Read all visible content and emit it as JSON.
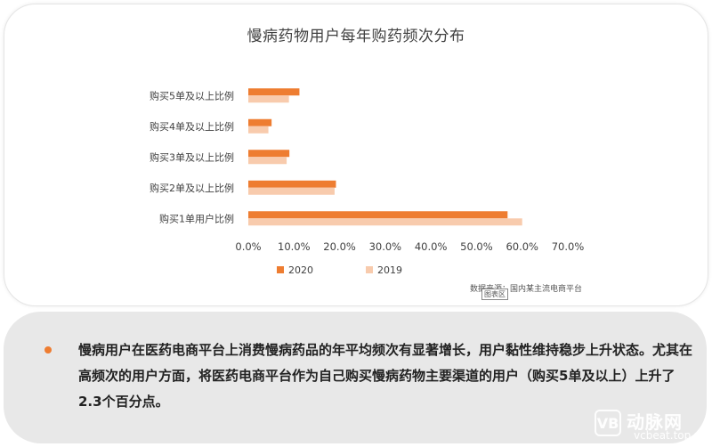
{
  "summary": {
    "bullet_color": "#ee7d31",
    "text": "慢病用户在医药电商平台上消费慢病药品的年平均频次有显著增长，用户黏性维持稳步上升状态。尤其在高频次的用户方面，将医药电商平台作为自己购买慢病药物主要渠道的用户（购买5单及以上）上升了2.3个百分点。"
  },
  "source": {
    "text": "数据来源：国内某主流电商平台",
    "tag": "图表区"
  },
  "watermark": {
    "mark": "VB",
    "name": "动脉网",
    "url": "vcbeat.top"
  },
  "chart_data": {
    "type": "bar",
    "orientation": "horizontal",
    "title": "慢病药物用户每年购药频次分布",
    "categories": [
      "购买5单及以上比例",
      "购买4单及以上比例",
      "购买3单及以上比例",
      "购买2单及以上比例",
      "购买1单用户比例"
    ],
    "series": [
      {
        "name": "2020",
        "color": "#ee7d31",
        "values": [
          11.2,
          5.1,
          9.0,
          19.2,
          56.8
        ]
      },
      {
        "name": "2019",
        "color": "#f8cbad",
        "values": [
          8.9,
          4.4,
          8.4,
          18.9,
          60.0
        ]
      }
    ],
    "xlim": [
      0,
      70
    ],
    "xticks": [
      "0.0%",
      "10.0%",
      "20.0%",
      "30.0%",
      "40.0%",
      "50.0%",
      "60.0%",
      "70.0%"
    ],
    "grid": false,
    "legend_position": "bottom"
  }
}
